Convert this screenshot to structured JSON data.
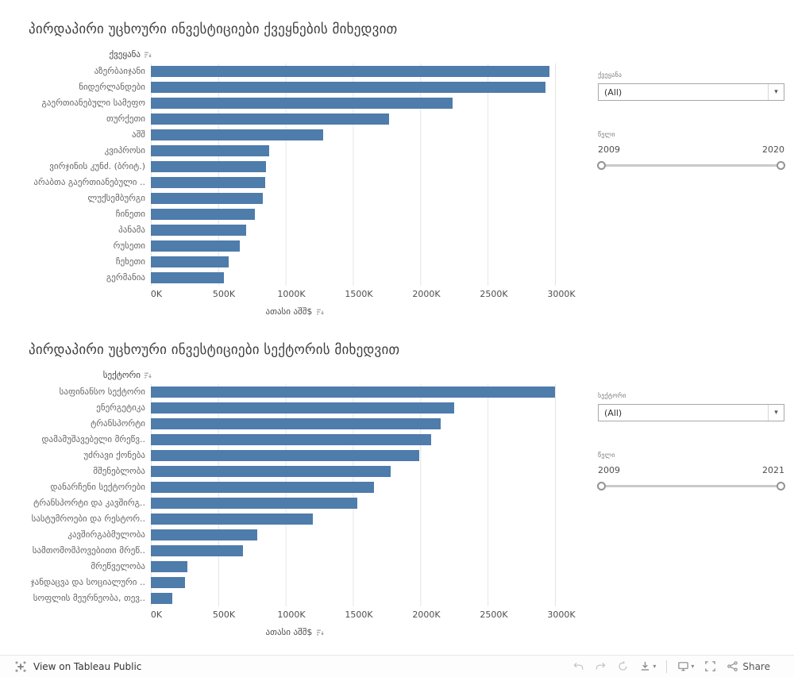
{
  "accent": "#4e7cab",
  "chart_data": [
    {
      "type": "bar",
      "orientation": "horizontal",
      "title": "პირდაპირი უცხოური ინვესტიციები ქვეყნების მიხედვით",
      "category_header": "ქვეყანა",
      "categories": [
        "აზერბაიჯანი",
        "ნიდერლანდები",
        "გაერთიანებული სამეფო",
        "თურქეთი",
        "აშშ",
        "კვიპროსი",
        "ვირჯინის კუნძ. (ბრიტ.)",
        "არაბთა გაერთიანებული ..",
        "ლუქსემბურგი",
        "ჩინეთი",
        "პანამა",
        "რუსეთი",
        "ჩეხეთი",
        "გერმანია"
      ],
      "values": [
        2960,
        2930,
        2240,
        1770,
        1280,
        880,
        855,
        850,
        830,
        775,
        710,
        660,
        580,
        540
      ],
      "xlabel": "ათასი აშშ$",
      "x_tick_labels": [
        "0K",
        "500K",
        "1000K",
        "1500K",
        "2000K",
        "2500K",
        "3000K"
      ],
      "x_tick_values": [
        0,
        500,
        1000,
        1500,
        2000,
        2500,
        3000
      ],
      "xlim": [
        0,
        3000
      ],
      "units": "thousand USD",
      "bar_color": "#4e7cab",
      "grid": true,
      "controls": {
        "filter_label": "ქვეყანა",
        "filter_value": "(All)",
        "slider_label": "წელი",
        "slider_min": "2009",
        "slider_max": "2020"
      }
    },
    {
      "type": "bar",
      "orientation": "horizontal",
      "title": "პირდაპირი უცხოური ინვესტიციები სექტორის მიხედვით",
      "category_header": "სექტორი",
      "categories": [
        "საფინანსო სექტორი",
        "ენერგეტიკა",
        "ტრანსპორტი",
        "დამამუშავებელი მრეწვ..",
        "უძრავი ქონება",
        "მშენებლობა",
        "დანარჩენი სექტორები",
        "ტრანსპორტი და კავშირგ..",
        "სასტუმროები და რესტორ..",
        "კავშირგაბმულობა",
        "სამთომომპოვებითი მრეწ..",
        "მრეწველობა",
        "ჯანდაცვა და სოციალური ..",
        "სოფლის მეურნეობა, თევ.."
      ],
      "values": [
        3000,
        2250,
        2150,
        2080,
        1990,
        1780,
        1655,
        1535,
        1205,
        790,
        685,
        270,
        255,
        160
      ],
      "xlabel": "ათასი აშშ$",
      "x_tick_labels": [
        "0K",
        "500K",
        "1000K",
        "1500K",
        "2000K",
        "2500K",
        "3000K"
      ],
      "x_tick_values": [
        0,
        500,
        1000,
        1500,
        2000,
        2500,
        3000
      ],
      "xlim": [
        0,
        3000
      ],
      "units": "thousand USD",
      "bar_color": "#4e7cab",
      "grid": true,
      "controls": {
        "filter_label": "სექტორი",
        "filter_value": "(All)",
        "slider_label": "წელი",
        "slider_min": "2009",
        "slider_max": "2021"
      }
    }
  ],
  "footer": {
    "view_label": "View on Tableau Public",
    "share_label": "Share",
    "icons": [
      "tableau-logo-icon",
      "undo-icon",
      "redo-icon",
      "replay-icon",
      "download-icon",
      "display-icon",
      "fullscreen-icon",
      "share-icon"
    ]
  }
}
